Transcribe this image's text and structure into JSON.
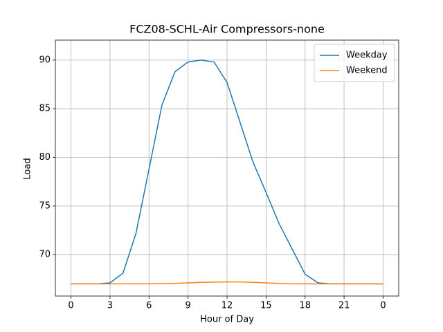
{
  "chart_data": {
    "type": "line",
    "title": "FCZ08-SCHL-Air Compressors-none",
    "x_label": "Hour of Day",
    "y_label": "Load",
    "x": [
      0,
      1,
      2,
      3,
      4,
      5,
      6,
      7,
      8,
      9,
      10,
      11,
      12,
      13,
      14,
      15,
      16,
      17,
      18,
      19,
      20,
      21,
      22,
      23,
      24
    ],
    "series": [
      {
        "name": "Weekday",
        "color": "#1f77b4",
        "values": [
          67.0,
          67.0,
          67.0,
          67.1,
          68.1,
          72.2,
          78.8,
          85.4,
          88.8,
          89.8,
          90.0,
          89.8,
          87.7,
          83.6,
          79.5,
          76.4,
          73.2,
          70.6,
          68.0,
          67.1,
          67.0,
          67.0,
          67.0,
          67.0,
          67.0
        ]
      },
      {
        "name": "Weekend",
        "color": "#ff7f0e",
        "values": [
          67.0,
          67.0,
          67.0,
          67.0,
          67.0,
          67.0,
          67.0,
          67.02,
          67.05,
          67.1,
          67.15,
          67.18,
          67.2,
          67.2,
          67.15,
          67.1,
          67.05,
          67.0,
          67.0,
          67.0,
          67.0,
          67.0,
          67.0,
          67.0,
          67.0
        ]
      }
    ],
    "xlim": [
      -1.2,
      25.2
    ],
    "ylim": [
      65.75,
      92.05
    ],
    "xticks": [
      0,
      3,
      6,
      9,
      12,
      15,
      18,
      21,
      {
        "value": 24,
        "label": "0"
      }
    ],
    "yticks": [
      70,
      75,
      80,
      85,
      90
    ],
    "grid": true,
    "legend": "upper right"
  }
}
